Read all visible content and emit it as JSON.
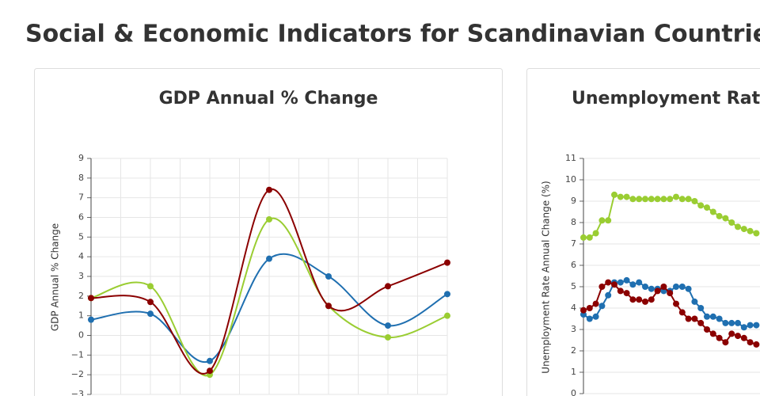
{
  "title": "Social & Economic Indicators for Scandinavian Countries",
  "chart_data": [
    {
      "type": "line",
      "smooth": true,
      "title": "GDP Annual % Change",
      "y_label": "GDP Annual % Change",
      "categories": [
        null,
        null,
        null,
        null,
        null,
        null,
        null
      ],
      "ylim": [
        -3,
        9
      ],
      "yticks": [
        {
          "value": -3,
          "label": "−3"
        },
        {
          "value": -2,
          "label": "−2"
        },
        {
          "value": -1,
          "label": "−1"
        },
        0,
        1,
        2,
        3,
        4,
        5,
        6,
        7,
        8,
        9
      ],
      "grid": true,
      "series": [
        {
          "color": "#1f6fb0",
          "values": [
            0.8,
            1.1,
            -1.3,
            3.9,
            3.0,
            0.5,
            2.1
          ]
        },
        {
          "color": "#9acd32",
          "values": [
            1.9,
            2.5,
            -2.0,
            5.9,
            1.5,
            -0.1,
            1.0
          ]
        },
        {
          "color": "#8b0000",
          "values": [
            1.9,
            1.7,
            -1.8,
            7.4,
            1.5,
            2.5,
            3.7
          ]
        }
      ]
    },
    {
      "type": "line",
      "smooth": false,
      "title": "Unemployment Rate",
      "y_label": "Unemployment Rate Annual Change (%)",
      "categories": [
        null,
        null,
        null,
        null,
        null,
        null,
        null,
        null,
        null,
        null,
        null,
        null,
        null,
        null,
        null,
        null,
        null,
        null,
        null,
        null,
        null,
        null,
        null,
        null,
        null,
        null,
        null,
        null,
        null
      ],
      "ylim": [
        0,
        11
      ],
      "yticks": [
        0,
        1,
        2,
        3,
        4,
        5,
        6,
        7,
        8,
        9,
        10,
        11
      ],
      "grid": true,
      "series": [
        {
          "color": "#9acd32",
          "values": [
            7.3,
            7.3,
            7.5,
            8.1,
            8.1,
            9.3,
            9.2,
            9.2,
            9.1,
            9.1,
            9.1,
            9.1,
            9.1,
            9.1,
            9.1,
            9.2,
            9.1,
            9.1,
            9.0,
            8.8,
            8.7,
            8.5,
            8.3,
            8.2,
            8.0,
            7.8,
            7.7,
            7.6,
            7.5
          ]
        },
        {
          "color": "#1f6fb0",
          "values": [
            3.7,
            3.5,
            3.6,
            4.1,
            4.6,
            5.2,
            5.2,
            5.3,
            5.1,
            5.2,
            5.0,
            4.9,
            4.9,
            4.8,
            4.8,
            5.0,
            5.0,
            4.9,
            4.3,
            4.0,
            3.6,
            3.6,
            3.5,
            3.3,
            3.3,
            3.3,
            3.1,
            3.2,
            3.2
          ]
        },
        {
          "color": "#8b0000",
          "values": [
            3.9,
            4.0,
            4.2,
            5.0,
            5.2,
            5.1,
            4.8,
            4.7,
            4.4,
            4.4,
            4.3,
            4.4,
            4.8,
            5.0,
            4.7,
            4.2,
            3.8,
            3.5,
            3.5,
            3.3,
            3.0,
            2.8,
            2.6,
            2.4,
            2.8,
            2.7,
            2.6,
            2.4,
            2.3
          ]
        }
      ]
    }
  ]
}
